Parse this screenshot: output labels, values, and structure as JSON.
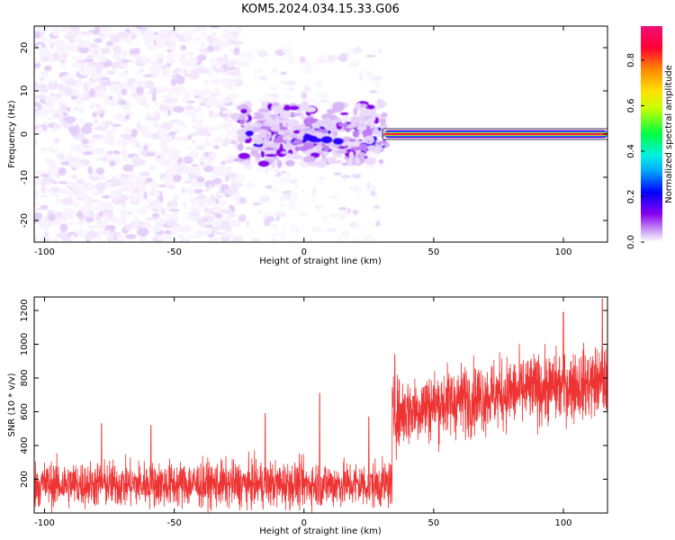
{
  "title": "KOM5.2024.034.15.33.G06",
  "chart_data": [
    {
      "type": "heatmap",
      "xlabel": "Height of straight line (km)",
      "ylabel": "Frequency (Hz)",
      "xlim": [
        -104,
        117
      ],
      "ylim": [
        -25,
        25
      ],
      "x_ticks": [
        -100,
        -50,
        0,
        50,
        100
      ],
      "y_ticks": [
        -20,
        -10,
        0,
        10,
        20
      ],
      "colorbar": {
        "label": "Normalized spectral amplitude",
        "range": [
          0,
          0.95
        ],
        "ticks": [
          0.0,
          0.2,
          0.4,
          0.6,
          0.8
        ],
        "colormap": [
          "#ffffff",
          "#d8b8f6",
          "#8800ee",
          "#0000ff",
          "#00d8ff",
          "#00ff44",
          "#f0ff00",
          "#ff8800",
          "#ff0044",
          "#ee1177"
        ]
      },
      "regions": [
        {
          "name": "noise",
          "x_range": [
            -104,
            -25
          ],
          "f_range": [
            -25,
            25
          ],
          "amplitude": 0.05
        },
        {
          "name": "transition",
          "x_range": [
            -25,
            30
          ],
          "f_range": [
            -25,
            20
          ],
          "amplitude": 0.04
        },
        {
          "name": "signal_cluster",
          "x_range": [
            -25,
            31
          ],
          "f_range": [
            -7,
            7
          ],
          "amplitude": 0.15
        },
        {
          "name": "carrier_line",
          "x_range": [
            31,
            117
          ],
          "f_center": 0,
          "amplitude": 0.9
        }
      ]
    },
    {
      "type": "line",
      "xlabel": "Height of straight line (km)",
      "ylabel": "SNR (10 * v/v)",
      "xlim": [
        -104,
        117
      ],
      "ylim": [
        0,
        1280
      ],
      "x_ticks": [
        -100,
        -50,
        0,
        50,
        100
      ],
      "y_ticks": [
        200,
        400,
        600,
        800,
        1000,
        1200
      ],
      "series": [
        {
          "color": "#ee3333",
          "segments": [
            {
              "x_range": [
                -104,
                34
              ],
              "mean": 170,
              "spread": 150,
              "spikes": [
                [
                  -78,
                  530
                ],
                [
                  -59,
                  520
                ],
                [
                  -15,
                  590
                ],
                [
                  6,
                  710
                ],
                [
                  25,
                  570
                ]
              ]
            },
            {
              "x_range": [
                34,
                117
              ],
              "mean_start": 560,
              "mean_end": 780,
              "spread": 230,
              "spikes": [
                [
                  35,
                  940
                ],
                [
                  100,
                  1190
                ],
                [
                  115,
                  1270
                ]
              ]
            }
          ]
        }
      ]
    }
  ]
}
